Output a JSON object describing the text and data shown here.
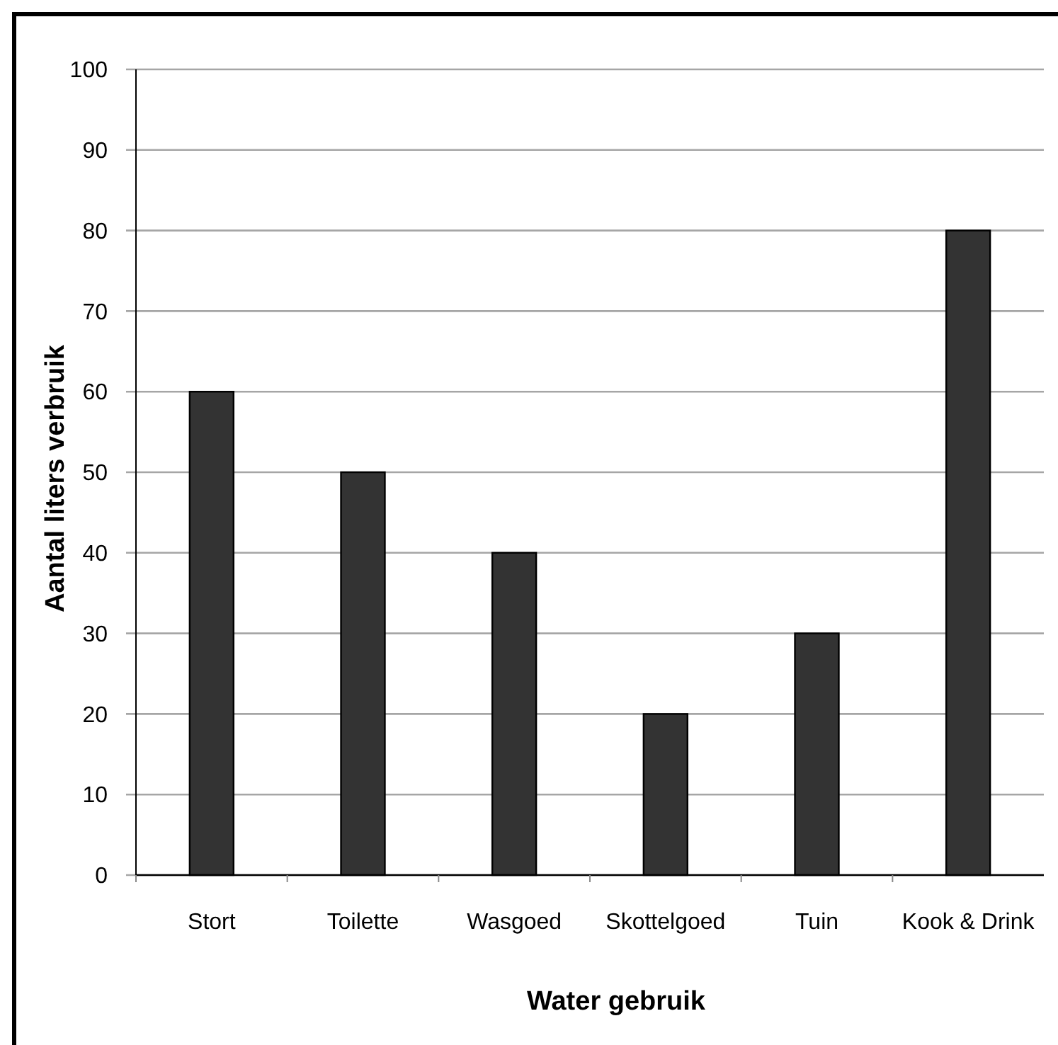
{
  "chart_data": {
    "type": "bar",
    "xlabel": "Water gebruik",
    "ylabel": "Aantal liters verbruik",
    "categories": [
      "Stort",
      "Toilette",
      "Wasgoed",
      "Skottelgoed",
      "Tuin",
      "Kook & Drink"
    ],
    "values": [
      60,
      50,
      40,
      20,
      30,
      80
    ],
    "color": "#333333",
    "ylim": [
      0,
      100
    ],
    "yticks": [
      0,
      10,
      20,
      30,
      40,
      50,
      60,
      70,
      80,
      90,
      100
    ],
    "grid": "y"
  }
}
